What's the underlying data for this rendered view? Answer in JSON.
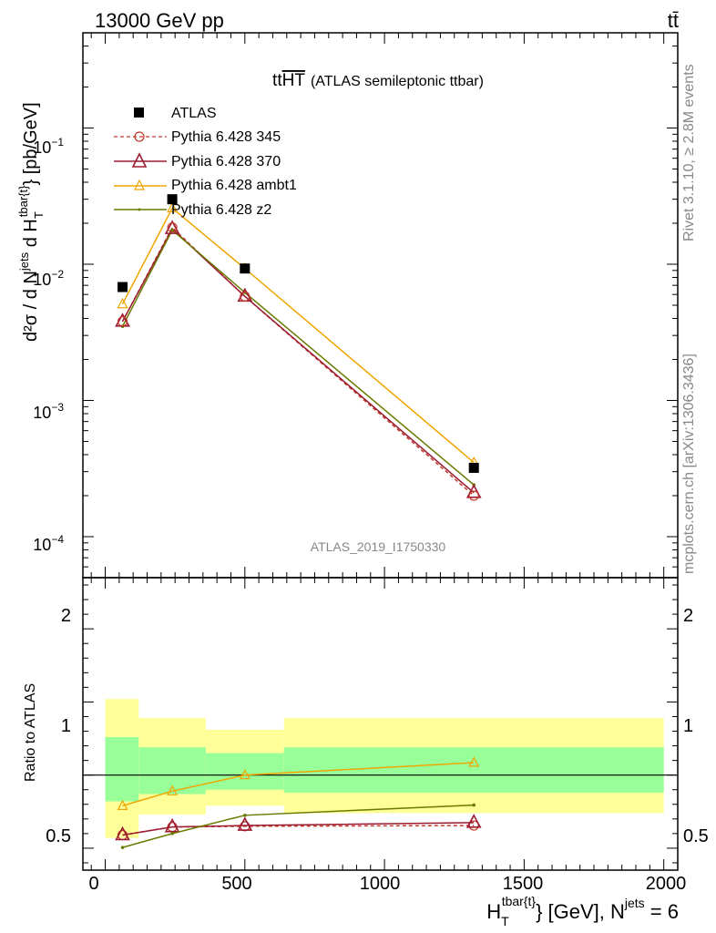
{
  "header": {
    "left": "13000 GeV pp",
    "right": "tt̄"
  },
  "side": {
    "rivet": "Rivet 3.1.10, ≥ 2.8M events",
    "mcplots": "mcplots.cern.ch [arXiv:1306.3436]"
  },
  "chart_data": [
    {
      "type": "line",
      "title_main": "tt",
      "title_overline": "HT",
      "title_sub": "(ATLAS semileptonic ttbar)",
      "analysis_label": "ATLAS_2019_I1750330",
      "yscale": "log",
      "ylim": [
        5e-05,
        0.5
      ],
      "xlim": [
        -80,
        2050
      ],
      "ylabel_parts": {
        "d2s": "d²σ / d N",
        "sup1": "jets",
        "mid": " d H",
        "sub2": "T",
        "sup2": "tbar{t}",
        "end": "} [pb/GeV]"
      },
      "ytick_labels": {
        "m1": "10",
        "m1e": "−1",
        "m2": "10",
        "m2e": "−2",
        "m3": "10",
        "m3e": "−3",
        "m4": "10",
        "m4e": "−4"
      },
      "legend": [
        "ATLAS",
        "Pythia 6.428 345",
        "Pythia 6.428 370",
        "Pythia 6.428 ambt1",
        "Pythia 6.428 z2"
      ],
      "x": [
        62,
        240,
        500,
        1320
      ],
      "series": [
        {
          "name": "ATLAS",
          "values": [
            0.0068,
            0.03,
            0.0093,
            0.00032
          ],
          "color": "#000000"
        },
        {
          "name": "Pythia 6.428 345",
          "values": [
            0.0038,
            0.0186,
            0.0058,
            0.0002
          ],
          "color": "#c0392b"
        },
        {
          "name": "Pythia 6.428 370",
          "values": [
            0.0038,
            0.0182,
            0.0058,
            0.00021
          ],
          "color": "#9b1b30"
        },
        {
          "name": "Pythia 6.428 ambt1",
          "values": [
            0.0051,
            0.0258,
            0.0093,
            0.00035
          ],
          "color": "#f0a500"
        },
        {
          "name": "Pythia 6.428 z2",
          "values": [
            0.0035,
            0.0178,
            0.0062,
            0.00024
          ],
          "color": "#6b7a00"
        }
      ]
    },
    {
      "type": "line",
      "ylabel": "Ratio to ATLAS",
      "xlabel_parts": {
        "h": "H",
        "sub": "T",
        "sup": "tbar{t}",
        "mid": "} [GeV], N",
        "sup2": "jets",
        "end": " = 6"
      },
      "ylim": [
        0.35,
        2.35
      ],
      "xlim": [
        -80,
        2050
      ],
      "yticks": [
        "0.5",
        "1",
        "2"
      ],
      "xticks": [
        "0",
        "500",
        "1000",
        "1500",
        "2000"
      ],
      "bands": {
        "edges": [
          0,
          120,
          360,
          640,
          2000
        ],
        "inner": [
          [
            0.82,
            1.26
          ],
          [
            0.87,
            1.19
          ],
          [
            0.9,
            1.15
          ],
          [
            0.88,
            1.19
          ]
        ],
        "outer": [
          [
            0.57,
            1.52
          ],
          [
            0.73,
            1.39
          ],
          [
            0.79,
            1.31
          ],
          [
            0.74,
            1.39
          ]
        ]
      },
      "x": [
        62,
        240,
        500,
        1320
      ],
      "series": [
        {
          "name": "Pythia 6.428 345",
          "values": [
            0.59,
            0.645,
            0.65,
            0.655
          ],
          "color": "#c0392b"
        },
        {
          "name": "Pythia 6.428 370",
          "values": [
            0.59,
            0.645,
            0.655,
            0.675
          ],
          "color": "#9b1b30"
        },
        {
          "name": "Pythia 6.428 ambt1",
          "values": [
            0.79,
            0.89,
            1.0,
            1.085
          ],
          "color": "#f0a500"
        },
        {
          "name": "Pythia 6.428 z2",
          "values": [
            0.505,
            0.6,
            0.725,
            0.795
          ],
          "color": "#6b7a00"
        }
      ]
    }
  ]
}
